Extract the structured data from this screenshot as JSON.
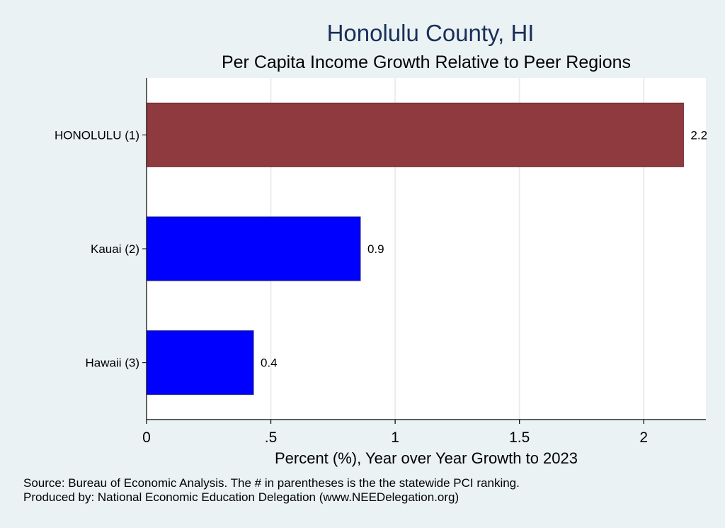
{
  "chart_data": {
    "type": "bar",
    "orientation": "horizontal",
    "title": "Honolulu County, HI",
    "subtitle": "Per Capita Income Growth Relative to Peer Regions",
    "xlabel": "Percent (%), Year over Year Growth to 2023",
    "ylabel": "",
    "xlim": [
      0,
      2.25
    ],
    "xticks": [
      0,
      0.5,
      1,
      1.5,
      2
    ],
    "xtick_labels": [
      "0",
      ".5",
      "1",
      "1.5",
      "2"
    ],
    "grid": true,
    "categories": [
      "HONOLULU  (1)",
      "Kauai  (2)",
      "Hawaii  (3)"
    ],
    "values": [
      2.16,
      0.86,
      0.43
    ],
    "value_labels": [
      "2.2",
      "0.9",
      "0.4"
    ],
    "bar_colors": [
      "#8e3a3f",
      "#0000ff",
      "#0000ff"
    ]
  },
  "notes": {
    "source": "Source: Bureau of Economic Analysis. The # in parentheses is the the statewide PCI ranking.",
    "produced_by": "Produced by: National Economic Education Delegation (www.NEEDelegation.org)"
  },
  "colors": {
    "background": "#eaf2f3",
    "plot_background": "#ffffff",
    "grid": "#e8eeee",
    "title": "#1a2f5a"
  }
}
